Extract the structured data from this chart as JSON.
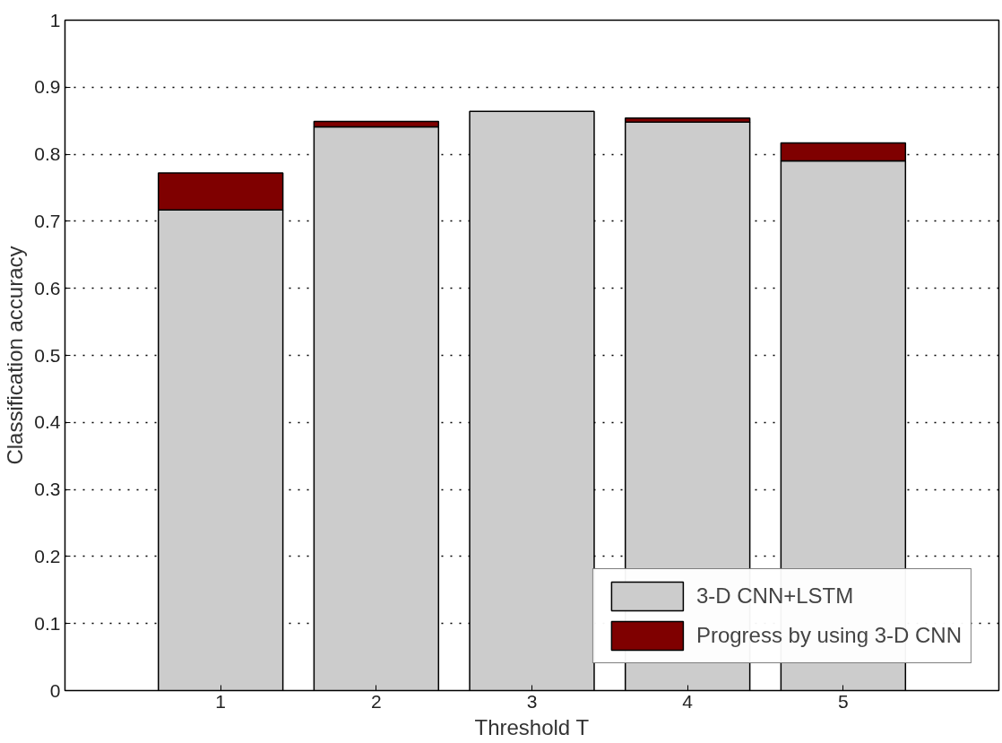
{
  "chart_data": {
    "type": "bar",
    "stacked": true,
    "xlabel": "Threshold T",
    "ylabel": "Classification accuracy",
    "x": [
      1,
      2,
      3,
      4,
      5
    ],
    "xlim": [
      0,
      6
    ],
    "xticks": [
      1,
      2,
      3,
      4,
      5
    ],
    "ylim": [
      0,
      1
    ],
    "yticks": [
      0,
      0.1,
      0.2,
      0.3,
      0.4,
      0.5,
      0.6,
      0.7,
      0.8,
      0.9,
      1
    ],
    "series": [
      {
        "name": "3-D CNN+LSTM",
        "color": "#cccccc",
        "values": [
          0.717,
          0.841,
          0.864,
          0.848,
          0.79
        ]
      },
      {
        "name": "Progress by using 3-D CNN",
        "color": "#7f0000",
        "values": [
          0.055,
          0.008,
          null,
          0.006,
          0.027
        ]
      }
    ],
    "grid": "y",
    "legend": "bottom right"
  }
}
